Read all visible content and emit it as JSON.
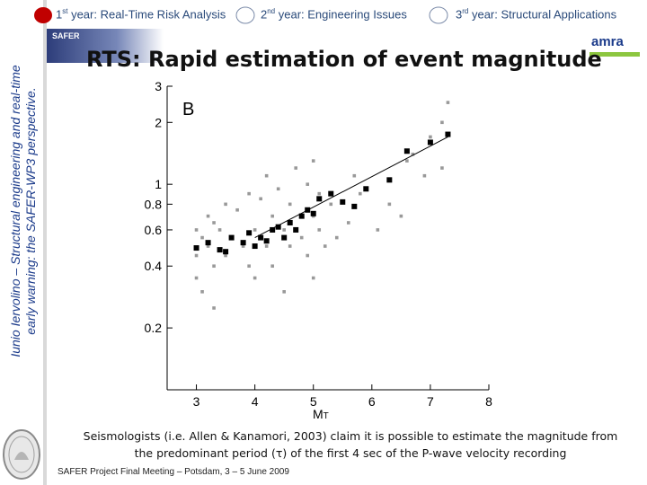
{
  "sidebar": {
    "vertical_title_line1": "Iunio Iervolino – Structural engineering and real-time",
    "vertical_title_line2": "early warning: the SAFER-WP3 perspective."
  },
  "tabs": [
    {
      "label": "1st year: Real-Time Risk Analysis",
      "number": "1",
      "suffix": "st",
      "text": " year: Real-Time Risk Analysis",
      "active": true
    },
    {
      "label": "2nd year: Engineering Issues",
      "number": "2",
      "suffix": "nd",
      "text": " year: Engineering Issues",
      "active": false
    },
    {
      "label": "3rd year: Structural Applications",
      "number": "3",
      "suffix": "rd",
      "text": " year: Structural Applications",
      "active": false
    }
  ],
  "banner": {
    "text": "SAFER"
  },
  "logo": {
    "text": "amra"
  },
  "colors": {
    "accent_red": "#c00000",
    "title_blue": "#1a3a8a",
    "tab_text": "#2a4a7a",
    "logo_green": "#8cc63f"
  },
  "title": "RTS: Rapid estimation of event magnitude",
  "chart_data": {
    "type": "scatter",
    "panel_label": "B",
    "xlabel": "M",
    "xlabel_sub": "T",
    "ylabel": "",
    "xlim": [
      2.5,
      8
    ],
    "ylim": [
      0.1,
      3
    ],
    "yscale": "log",
    "x_ticks": [
      "3",
      "4",
      "5",
      "6",
      "7",
      "8"
    ],
    "y_ticks": [
      "3",
      "2",
      "1",
      "0.8",
      "0.6",
      "0.4",
      "0.2"
    ],
    "series": [
      {
        "name": "individual-stations",
        "color": "#999999",
        "x": [
          3.0,
          3.0,
          3.0,
          3.1,
          3.1,
          3.2,
          3.2,
          3.3,
          3.3,
          3.3,
          3.4,
          3.5,
          3.5,
          3.6,
          3.7,
          3.8,
          3.9,
          3.9,
          4.0,
          4.0,
          4.1,
          4.2,
          4.2,
          4.3,
          4.3,
          4.4,
          4.5,
          4.5,
          4.6,
          4.6,
          4.7,
          4.8,
          4.9,
          4.9,
          5.0,
          5.0,
          5.0,
          5.1,
          5.1,
          5.2,
          5.3,
          5.4,
          5.6,
          5.7,
          5.8,
          6.1,
          6.3,
          6.5,
          6.6,
          6.7,
          6.9,
          7.0,
          7.2,
          7.2,
          7.3
        ],
        "y": [
          0.35,
          0.45,
          0.6,
          0.3,
          0.55,
          0.5,
          0.7,
          0.4,
          0.65,
          0.25,
          0.6,
          0.45,
          0.8,
          0.55,
          0.75,
          0.5,
          0.4,
          0.9,
          0.6,
          0.35,
          0.85,
          0.5,
          1.1,
          0.7,
          0.4,
          0.95,
          0.6,
          0.3,
          0.8,
          0.5,
          1.2,
          0.55,
          0.45,
          1.0,
          0.7,
          0.35,
          1.3,
          0.6,
          0.9,
          0.5,
          0.8,
          0.55,
          0.65,
          1.1,
          0.9,
          0.6,
          0.8,
          0.7,
          1.3,
          1.4,
          1.1,
          1.7,
          2.0,
          1.2,
          2.5
        ]
      },
      {
        "name": "event-averages",
        "color": "#000000",
        "x": [
          3.0,
          3.2,
          3.4,
          3.5,
          3.6,
          3.8,
          3.9,
          4.0,
          4.1,
          4.2,
          4.3,
          4.4,
          4.5,
          4.6,
          4.7,
          4.8,
          4.9,
          5.0,
          5.1,
          5.3,
          5.5,
          5.7,
          5.9,
          6.3,
          6.6,
          7.0,
          7.3
        ],
        "y": [
          0.49,
          0.52,
          0.48,
          0.47,
          0.55,
          0.52,
          0.58,
          0.5,
          0.55,
          0.53,
          0.6,
          0.62,
          0.55,
          0.65,
          0.6,
          0.7,
          0.75,
          0.72,
          0.85,
          0.9,
          0.82,
          0.78,
          0.95,
          1.05,
          1.45,
          1.6,
          1.75
        ]
      },
      {
        "name": "regression-line",
        "color": "#000000",
        "x": [
          4.0,
          7.3
        ],
        "y": [
          0.55,
          1.7
        ]
      }
    ]
  },
  "caption": {
    "line1": "Seismologists (i.e. Allen & Kanamori, 2003) claim it is possible to estimate the magnitude from",
    "line2": "the predominant period (τ) of the first 4 sec of the P-wave velocity recording"
  },
  "footer": "SAFER Project Final Meeting – Potsdam, 3 – 5 June 2009"
}
